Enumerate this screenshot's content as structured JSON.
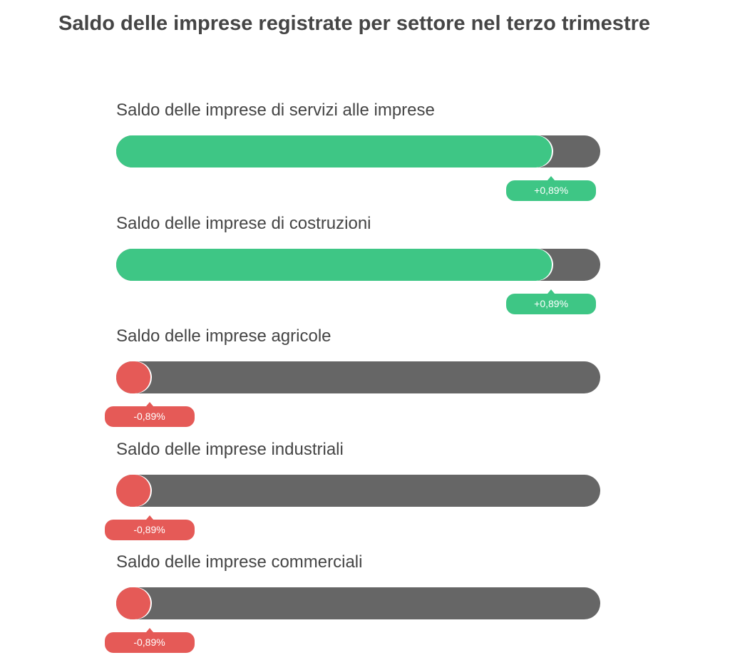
{
  "title": "Saldo delle imprese registrate per settore nel terzo trimestre",
  "colors": {
    "positive": "#3EC685",
    "negative": "#E55A57",
    "track": "#666666"
  },
  "chart_data": {
    "type": "bar",
    "title": "Saldo delle imprese registrate per settore nel terzo trimestre",
    "categories": [
      "Saldo delle imprese di servizi alle imprese",
      "Saldo delle imprese di costruzioni",
      "Saldo delle imprese agricole",
      "Saldo delle imprese industriali",
      "Saldo delle imprese commerciali"
    ],
    "value_labels": [
      "+0,89%",
      "+0,89%",
      "-0,89%",
      "-0,89%",
      "-0,89%"
    ],
    "values": [
      0.89,
      0.89,
      -0.89,
      -0.89,
      -0.89
    ],
    "fill_percent": [
      90,
      90,
      7,
      7,
      7
    ]
  }
}
